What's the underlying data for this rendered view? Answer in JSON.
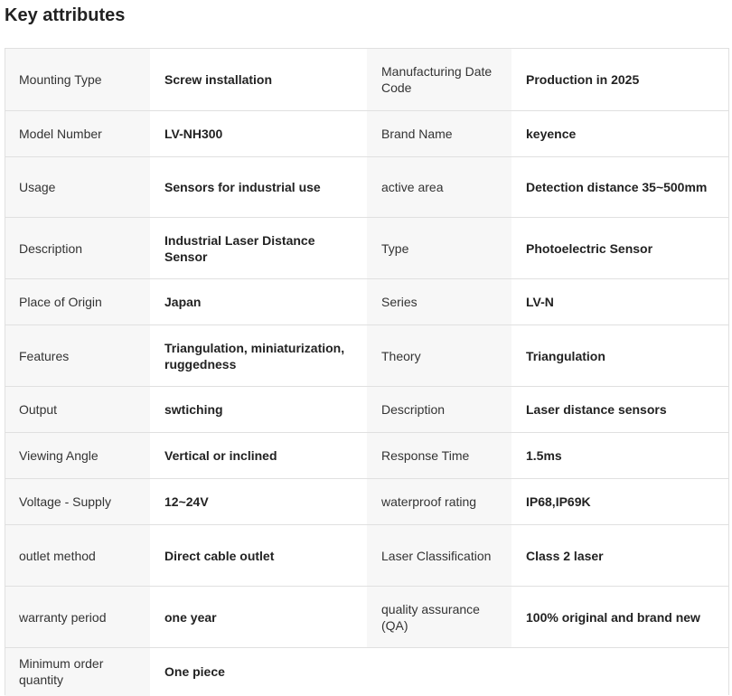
{
  "title": "Key attributes",
  "rows": [
    [
      {
        "label": "Mounting Type",
        "value": "Screw installation"
      },
      {
        "label": "Manufacturing Date Code",
        "value": "Production in 2025"
      }
    ],
    [
      {
        "label": "Model Number",
        "value": "LV-NH300"
      },
      {
        "label": "Brand Name",
        "value": "keyence"
      }
    ],
    [
      {
        "label": "Usage",
        "value": "Sensors for industrial use"
      },
      {
        "label": "active area",
        "value": "Detection distance 35~500mm"
      }
    ],
    [
      {
        "label": "Description",
        "value": "Industrial Laser Distance Sensor"
      },
      {
        "label": "Type",
        "value": "Photoelectric Sensor"
      }
    ],
    [
      {
        "label": "Place of Origin",
        "value": "Japan"
      },
      {
        "label": "Series",
        "value": "LV-N"
      }
    ],
    [
      {
        "label": "Features",
        "value": "Triangulation, miniaturization, ruggedness"
      },
      {
        "label": "Theory",
        "value": "Triangulation"
      }
    ],
    [
      {
        "label": "Output",
        "value": "swtiching"
      },
      {
        "label": "Description",
        "value": "Laser distance sensors"
      }
    ],
    [
      {
        "label": "Viewing Angle",
        "value": "Vertical or inclined"
      },
      {
        "label": "Response Time",
        "value": "1.5ms"
      }
    ],
    [
      {
        "label": "Voltage - Supply",
        "value": "12~24V"
      },
      {
        "label": "waterproof rating",
        "value": "IP68,IP69K"
      }
    ],
    [
      {
        "label": "outlet method",
        "value": "Direct cable outlet"
      },
      {
        "label": "Laser Classification",
        "value": "Class 2 laser"
      }
    ],
    [
      {
        "label": "warranty period",
        "value": "one year"
      },
      {
        "label": "quality assurance (QA)",
        "value": "100% original and brand new"
      }
    ],
    [
      {
        "label": "Minimum order quantity",
        "value": "One piece"
      }
    ]
  ]
}
